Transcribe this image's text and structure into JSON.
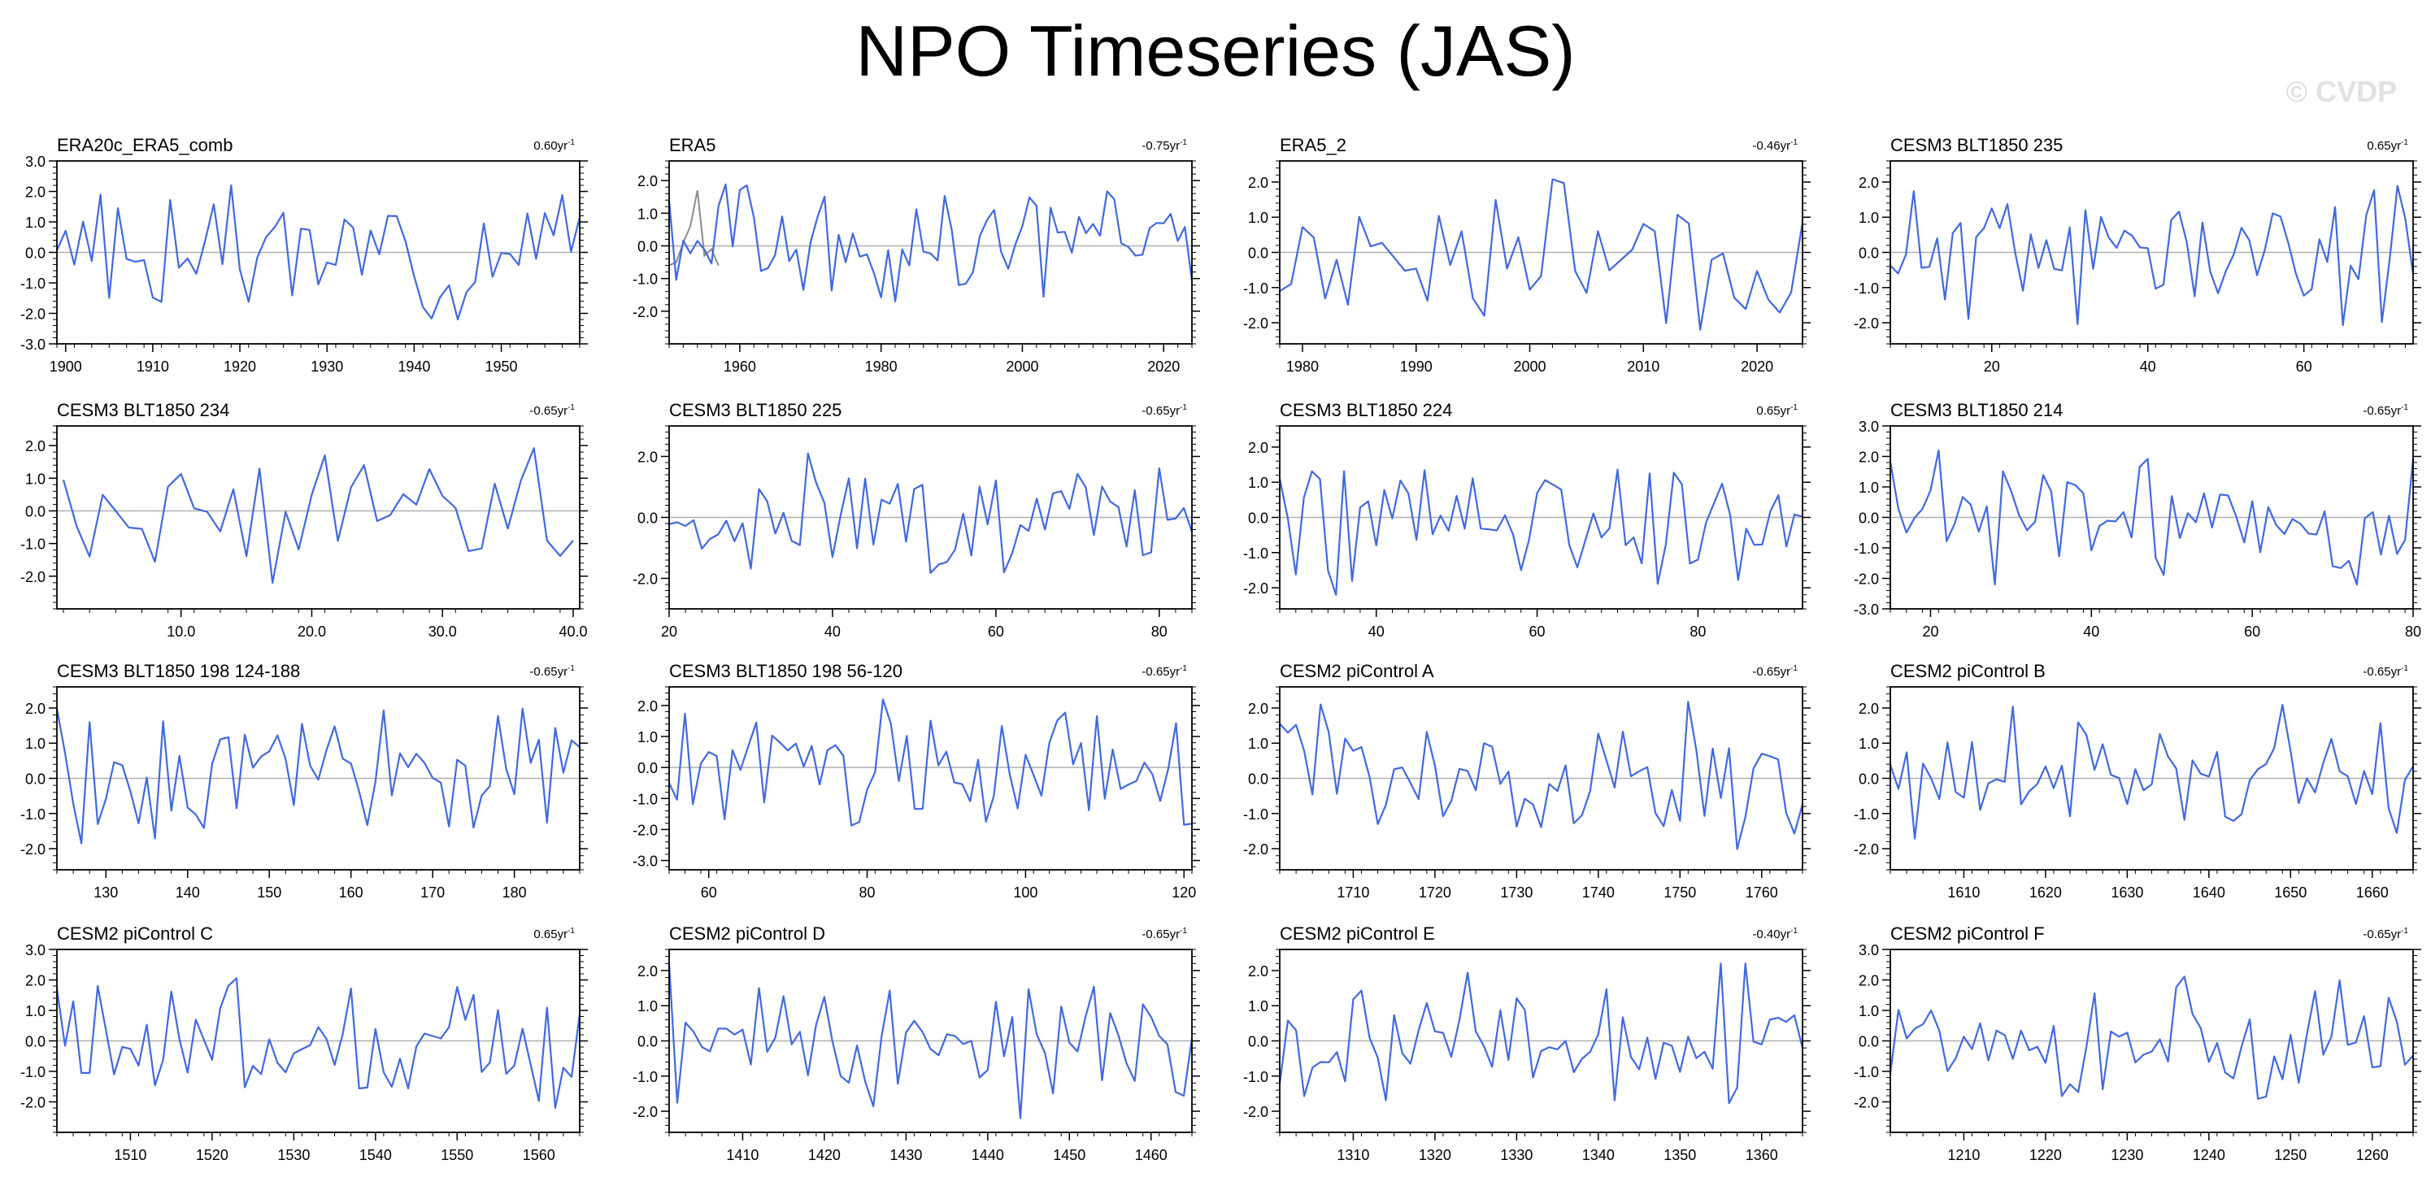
{
  "title": "NPO Timeseries (JAS)",
  "watermark": "© CVDP",
  "colors": {
    "series": "#4169e1",
    "secondary": "#8c8c8c",
    "zero_line": "#b0b0b0",
    "frame": "#000000"
  },
  "chart_data": [
    {
      "type": "line",
      "title": "ERA20c_ERA5_comb",
      "trend": "0.60yr",
      "xlim": [
        1899,
        1959
      ],
      "ylim": [
        -3.0,
        3.0
      ],
      "xticks": [
        1900,
        1910,
        1920,
        1930,
        1940,
        1950
      ],
      "yticks": [
        "3.0",
        "2.0",
        "1.0",
        "0.0",
        "-1.0",
        "-2.0",
        "-3.0"
      ],
      "seed": 3
    },
    {
      "type": "line",
      "title": "ERA5",
      "trend": "-0.75yr",
      "xlim": [
        1950,
        2024
      ],
      "ylim": [
        -3.0,
        2.6
      ],
      "xticks": [
        1960,
        1980,
        2000,
        2020
      ],
      "yticks": [
        "2.0",
        "1.0",
        "0.0",
        "-1.0",
        "-2.0"
      ],
      "seed": 5,
      "secondary": {
        "x": [
          1950,
          1951,
          1952,
          1953,
          1954,
          1955,
          1956,
          1957
        ],
        "y": [
          -0.6,
          -0.5,
          0.1,
          0.6,
          1.7,
          -0.3,
          -0.1,
          -0.6
        ]
      }
    },
    {
      "type": "line",
      "title": "ERA5_2",
      "trend": "-0.46yr",
      "xlim": [
        1978,
        2024
      ],
      "ylim": [
        -2.6,
        2.6
      ],
      "xticks": [
        1980,
        1990,
        2000,
        2010,
        2020
      ],
      "yticks": [
        "2.0",
        "1.0",
        "0.0",
        "-1.0",
        "-2.0"
      ],
      "seed": 7
    },
    {
      "type": "line",
      "title": "CESM3 BLT1850 235",
      "trend": "0.65yr",
      "xlim": [
        7,
        74
      ],
      "ylim": [
        -2.6,
        2.6
      ],
      "xticks": [
        20,
        40,
        60
      ],
      "yticks": [
        "2.0",
        "1.0",
        "0.0",
        "-1.0",
        "-2.0"
      ],
      "seed": 11
    },
    {
      "type": "line",
      "title": "CESM3 BLT1850 234",
      "trend": "-0.65yr",
      "xlim": [
        0.5,
        40.5
      ],
      "ylim": [
        -3.0,
        2.6
      ],
      "xticks": [
        10.0,
        20.0,
        30.0,
        40.0
      ],
      "xtick_labels": [
        "10.0",
        "20.0",
        "30.0",
        "40.0"
      ],
      "yticks": [
        "2.0",
        "1.0",
        "0.0",
        "-1.0",
        "-2.0"
      ],
      "seed": 13
    },
    {
      "type": "line",
      "title": "CESM3 BLT1850 225",
      "trend": "-0.65yr",
      "xlim": [
        20,
        84
      ],
      "ylim": [
        -3.0,
        3.0
      ],
      "xticks": [
        20,
        40,
        60,
        80
      ],
      "yticks": [
        "2.0",
        "0.0",
        "-2.0"
      ],
      "seed": 17
    },
    {
      "type": "line",
      "title": "CESM3 BLT1850 224",
      "trend": "0.65yr",
      "xlim": [
        28,
        93
      ],
      "ylim": [
        -2.6,
        2.6
      ],
      "xticks": [
        40,
        60,
        80
      ],
      "yticks": [
        "2.0",
        "1.0",
        "0.0",
        "-1.0",
        "-2.0"
      ],
      "seed": 19
    },
    {
      "type": "line",
      "title": "CESM3 BLT1850 214",
      "trend": "-0.65yr",
      "xlim": [
        15,
        80
      ],
      "ylim": [
        -3.0,
        3.0
      ],
      "xticks": [
        20,
        40,
        60,
        80
      ],
      "yticks": [
        "3.0",
        "2.0",
        "1.0",
        "0.0",
        "-1.0",
        "-2.0",
        "-3.0"
      ],
      "seed": 23
    },
    {
      "type": "line",
      "title": "CESM3 BLT1850 198 124-188",
      "trend": "-0.65yr",
      "xlim": [
        124,
        188
      ],
      "ylim": [
        -2.6,
        2.6
      ],
      "xticks": [
        130,
        140,
        150,
        160,
        170,
        180
      ],
      "yticks": [
        "2.0",
        "1.0",
        "0.0",
        "-1.0",
        "-2.0"
      ],
      "seed": 29
    },
    {
      "type": "line",
      "title": "CESM3 BLT1850 198 56-120",
      "trend": "-0.65yr",
      "xlim": [
        55,
        121
      ],
      "ylim": [
        -3.3,
        2.6
      ],
      "xticks": [
        60,
        80,
        100,
        120
      ],
      "yticks": [
        "2.0",
        "1.0",
        "0.0",
        "-1.0",
        "-2.0",
        "-3.0"
      ],
      "seed": 31
    },
    {
      "type": "line",
      "title": "CESM2 piControl A",
      "trend": "-0.65yr",
      "xlim": [
        1701,
        1765
      ],
      "ylim": [
        -2.6,
        2.6
      ],
      "xticks": [
        1710,
        1720,
        1730,
        1740,
        1750,
        1760
      ],
      "yticks": [
        "2.0",
        "1.0",
        "0.0",
        "-1.0",
        "-2.0"
      ],
      "seed": 37
    },
    {
      "type": "line",
      "title": "CESM2 piControl B",
      "trend": "-0.65yr",
      "xlim": [
        1601,
        1665
      ],
      "ylim": [
        -2.6,
        2.6
      ],
      "xticks": [
        1610,
        1620,
        1630,
        1640,
        1650,
        1660
      ],
      "yticks": [
        "2.0",
        "1.0",
        "0.0",
        "-1.0",
        "-2.0"
      ],
      "seed": 41
    },
    {
      "type": "line",
      "title": "CESM2 piControl C",
      "trend": "0.65yr",
      "xlim": [
        1501,
        1565
      ],
      "ylim": [
        -3.0,
        3.0
      ],
      "xticks": [
        1510,
        1520,
        1530,
        1540,
        1550,
        1560
      ],
      "yticks": [
        "3.0",
        "2.0",
        "1.0",
        "0.0",
        "-1.0",
        "-2.0"
      ],
      "seed": 43
    },
    {
      "type": "line",
      "title": "CESM2 piControl D",
      "trend": "-0.65yr",
      "xlim": [
        1401,
        1465
      ],
      "ylim": [
        -2.6,
        2.6
      ],
      "xticks": [
        1410,
        1420,
        1430,
        1440,
        1450,
        1460
      ],
      "yticks": [
        "2.0",
        "1.0",
        "0.0",
        "-1.0",
        "-2.0"
      ],
      "seed": 47
    },
    {
      "type": "line",
      "title": "CESM2 piControl E",
      "trend": "-0.40yr",
      "xlim": [
        1301,
        1365
      ],
      "ylim": [
        -2.6,
        2.6
      ],
      "xticks": [
        1310,
        1320,
        1330,
        1340,
        1350,
        1360
      ],
      "yticks": [
        "2.0",
        "1.0",
        "0.0",
        "-1.0",
        "-2.0"
      ],
      "seed": 53
    },
    {
      "type": "line",
      "title": "CESM2 piControl F",
      "trend": "-0.65yr",
      "xlim": [
        1201,
        1265
      ],
      "ylim": [
        -3.0,
        3.0
      ],
      "xticks": [
        1210,
        1220,
        1230,
        1240,
        1250,
        1260
      ],
      "yticks": [
        "3.0",
        "2.0",
        "1.0",
        "0.0",
        "-1.0",
        "-2.0"
      ],
      "seed": 59
    }
  ]
}
